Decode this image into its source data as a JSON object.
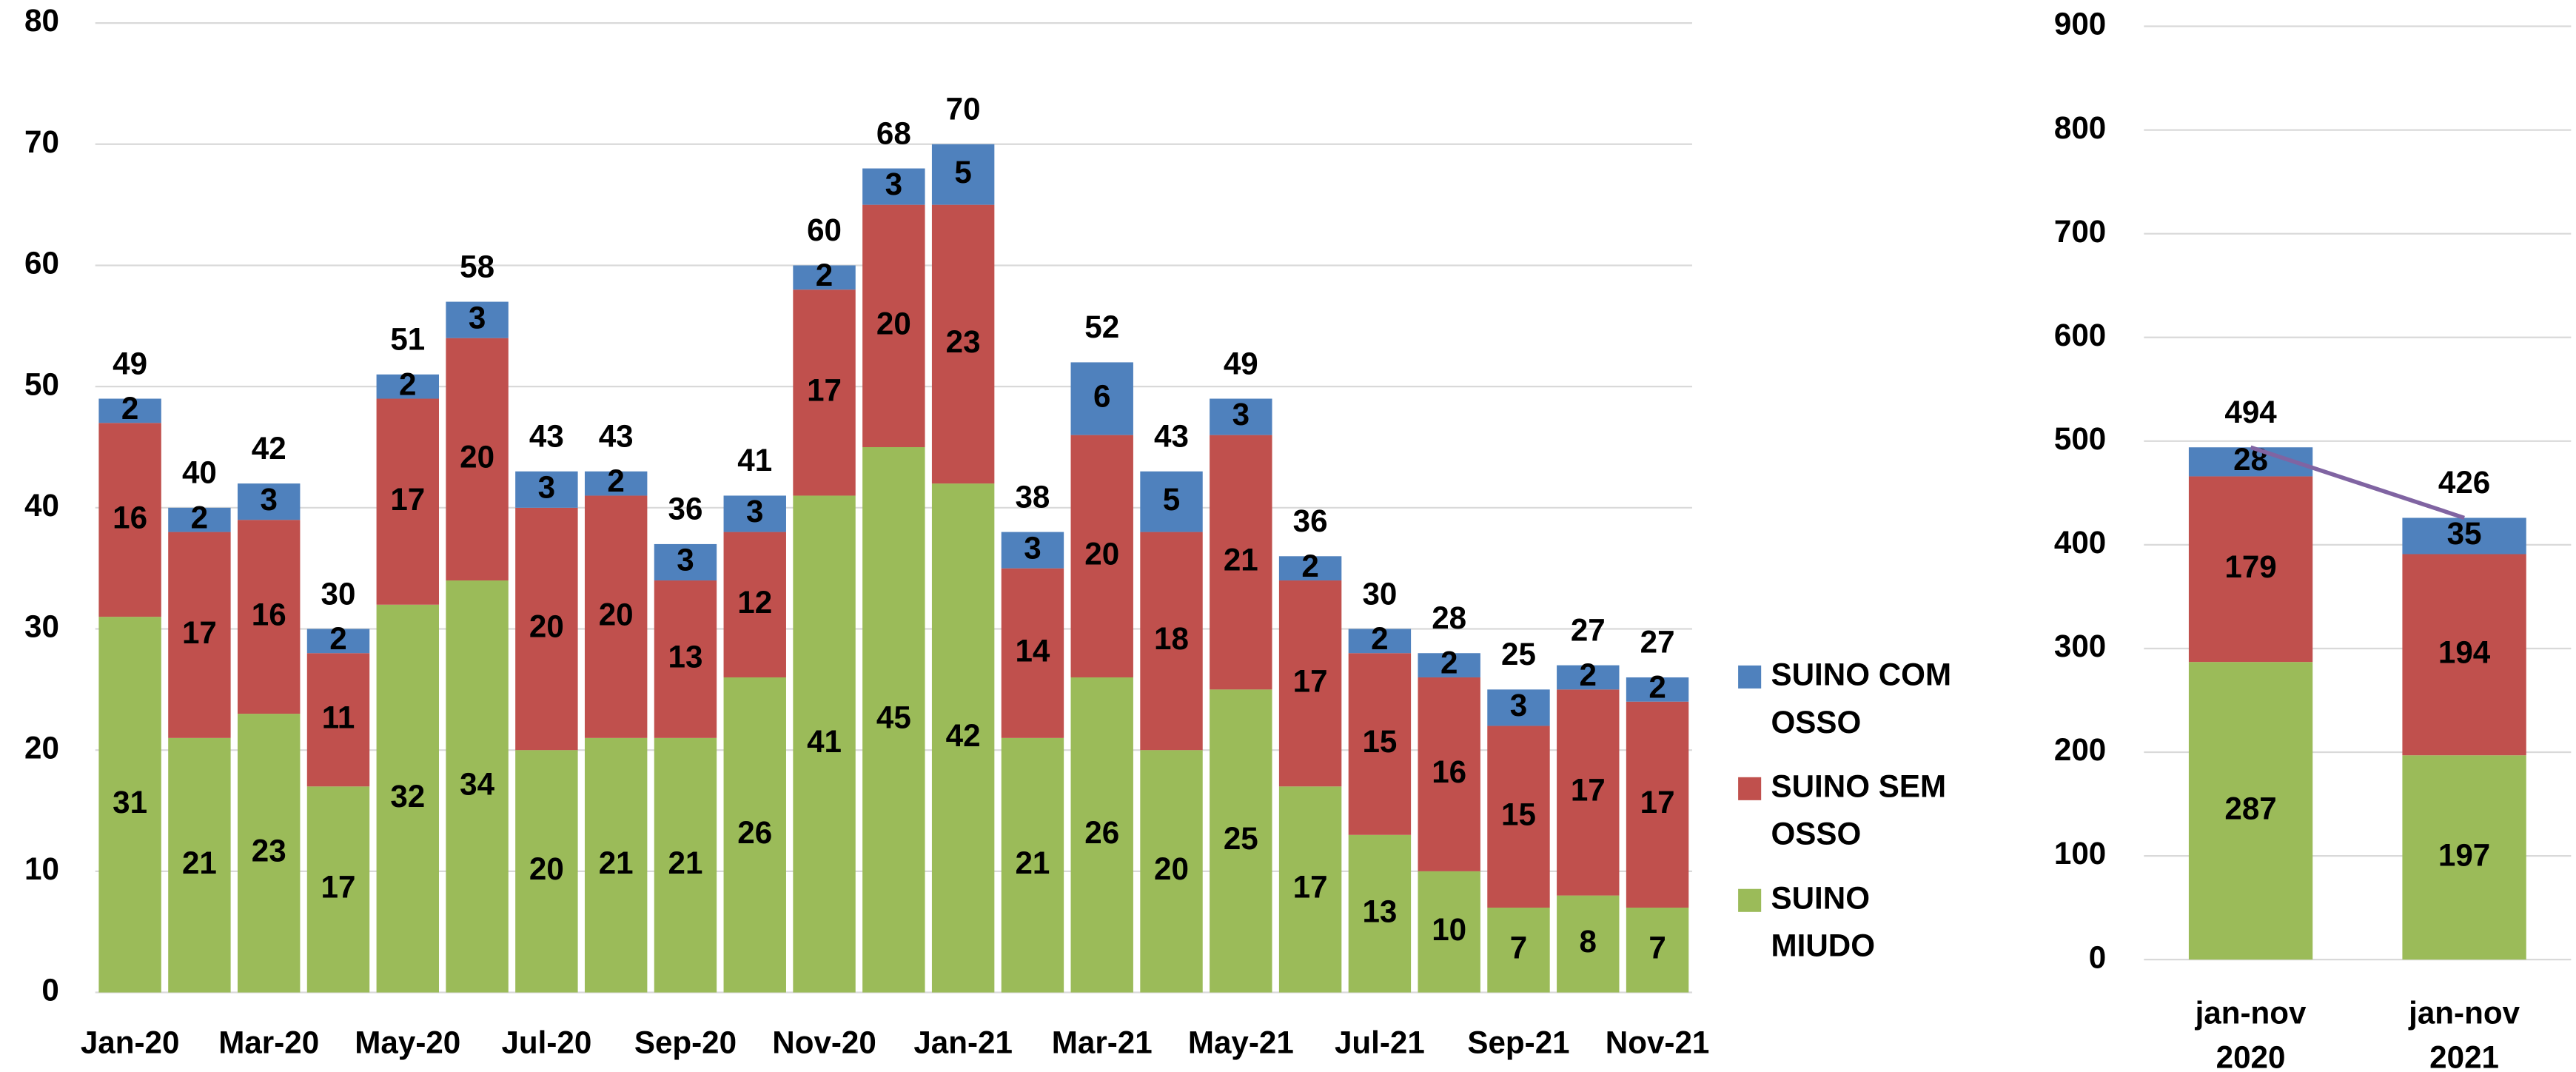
{
  "chart_data": [
    {
      "type": "bar",
      "stacked": true,
      "grid": true,
      "legend": "right",
      "categories": [
        "Jan-20",
        null,
        "Mar-20",
        null,
        "May-20",
        null,
        "Jul-20",
        null,
        "Sep-20",
        null,
        "Nov-20",
        null,
        "Jan-21",
        null,
        "Mar-21",
        null,
        "May-21",
        null,
        "Jul-21",
        null,
        "Sep-21",
        null,
        "Nov-21"
      ],
      "series": [
        {
          "name": "SUINO COM OSSO",
          "color": "#4f81bd",
          "values": [
            2,
            2,
            3,
            2,
            2,
            3,
            3,
            2,
            3,
            3,
            2,
            3,
            5,
            3,
            6,
            5,
            3,
            2,
            2,
            2,
            3,
            2,
            2
          ]
        },
        {
          "name": "SUINO SEM OSSO",
          "color": "#c0504d",
          "values": [
            16,
            17,
            16,
            11,
            17,
            20,
            20,
            20,
            13,
            12,
            17,
            20,
            23,
            14,
            20,
            18,
            21,
            17,
            15,
            16,
            15,
            17,
            17
          ]
        },
        {
          "name": "SUINO MIUDO",
          "color": "#9bbb59",
          "values": [
            31,
            21,
            23,
            17,
            32,
            34,
            20,
            21,
            21,
            26,
            41,
            45,
            42,
            21,
            26,
            20,
            25,
            17,
            13,
            10,
            7,
            8,
            7
          ]
        }
      ],
      "totals": [
        49,
        40,
        42,
        30,
        51,
        58,
        43,
        43,
        36,
        41,
        60,
        68,
        70,
        38,
        52,
        43,
        49,
        36,
        30,
        28,
        25,
        27,
        27
      ],
      "ylim": [
        0,
        80
      ],
      "yticks": [
        0,
        10,
        20,
        30,
        40,
        50,
        60,
        70,
        80
      ]
    },
    {
      "type": "bar",
      "stacked": true,
      "grid": true,
      "trend_color": "#8064a2",
      "categories": [
        "jan-nov 2020",
        "jan-nov 2021"
      ],
      "series": [
        {
          "name": "SUINO COM OSSO",
          "color": "#4f81bd",
          "values": [
            28,
            35
          ]
        },
        {
          "name": "SUINO SEM OSSO",
          "color": "#c0504d",
          "values": [
            179,
            194
          ]
        },
        {
          "name": "SUINO MIUDO",
          "color": "#9bbb59",
          "values": [
            287,
            197
          ]
        }
      ],
      "totals": [
        494,
        426
      ],
      "ylim": [
        0,
        900
      ],
      "yticks": [
        0,
        100,
        200,
        300,
        400,
        500,
        600,
        700,
        800,
        900
      ]
    }
  ]
}
